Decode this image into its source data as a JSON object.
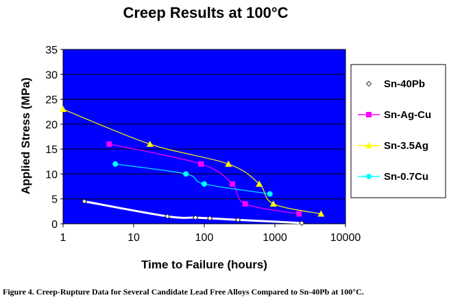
{
  "chart_data": {
    "type": "scatter",
    "title": "Creep Results at 100°C",
    "xlabel": "Time to Failure (hours)",
    "ylabel": "Applied Stress (MPa)",
    "xscale": "log",
    "xlim": [
      1,
      10000
    ],
    "ylim": [
      0,
      35
    ],
    "x_ticks": [
      "1",
      "10",
      "100",
      "1000",
      "10000"
    ],
    "y_ticks": [
      "0",
      "5",
      "10",
      "15",
      "20",
      "25",
      "30",
      "35"
    ],
    "grid": "horizontal",
    "legend_position": "right",
    "plot_background": "#0000ff",
    "series": [
      {
        "name": "Sn-40Pb",
        "color": "#ffffff",
        "marker": "diamond",
        "x": [
          2,
          30,
          75,
          120,
          300,
          2400
        ],
        "y": [
          4.5,
          1.5,
          1.25,
          1.1,
          0.8,
          0.15
        ]
      },
      {
        "name": "Sn-Ag-Cu",
        "color": "#ff00ff",
        "marker": "square",
        "x": [
          4.5,
          90,
          250,
          380,
          2200
        ],
        "y": [
          16,
          12,
          8,
          4,
          2
        ]
      },
      {
        "name": "Sn-3.5Ag",
        "color": "#ffff00",
        "marker": "triangle",
        "x": [
          1,
          17,
          220,
          600,
          950,
          4500
        ],
        "y": [
          23,
          16,
          12,
          8,
          4,
          2
        ]
      },
      {
        "name": "Sn-0.7Cu",
        "color": "#00ffff",
        "marker": "circle",
        "x": [
          5.5,
          55,
          100,
          850
        ],
        "y": [
          12,
          10,
          8,
          6
        ]
      }
    ]
  },
  "caption": "Figure 4. Creep-Rupture Data for Several Candidate Lead Free Alloys Compared to Sn-40Pb at 100°C."
}
